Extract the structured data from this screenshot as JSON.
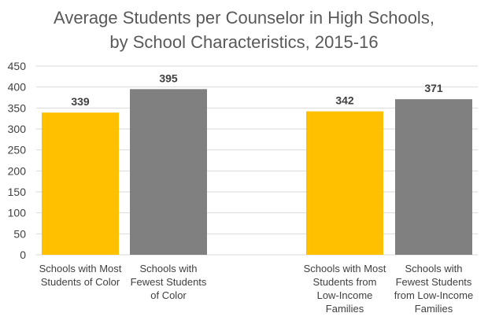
{
  "chart_data": {
    "type": "bar",
    "title": [
      "Average Students per Counselor in High Schools,",
      "by School Characteristics, 2015-16"
    ],
    "categories": [
      [
        "Schools with Most",
        "Students of Color"
      ],
      [
        "Schools with",
        "Fewest Students",
        "of Color"
      ],
      [
        "Schools with Most",
        "Students from",
        "Low-Income",
        "Families"
      ],
      [
        "Schools with",
        "Fewest Students",
        "from Low-Income",
        "Families"
      ]
    ],
    "values": [
      339,
      395,
      342,
      371
    ],
    "bar_colors": [
      "#FFC000",
      "#808080",
      "#FFC000",
      "#808080"
    ],
    "data_labels": [
      "339",
      "395",
      "342",
      "371"
    ],
    "yticks": [
      "0",
      "50",
      "100",
      "150",
      "200",
      "250",
      "300",
      "350",
      "400",
      "450"
    ],
    "ylim": [
      0,
      450
    ],
    "xlabel": "",
    "ylabel": "",
    "grid": true,
    "legend": "none"
  }
}
